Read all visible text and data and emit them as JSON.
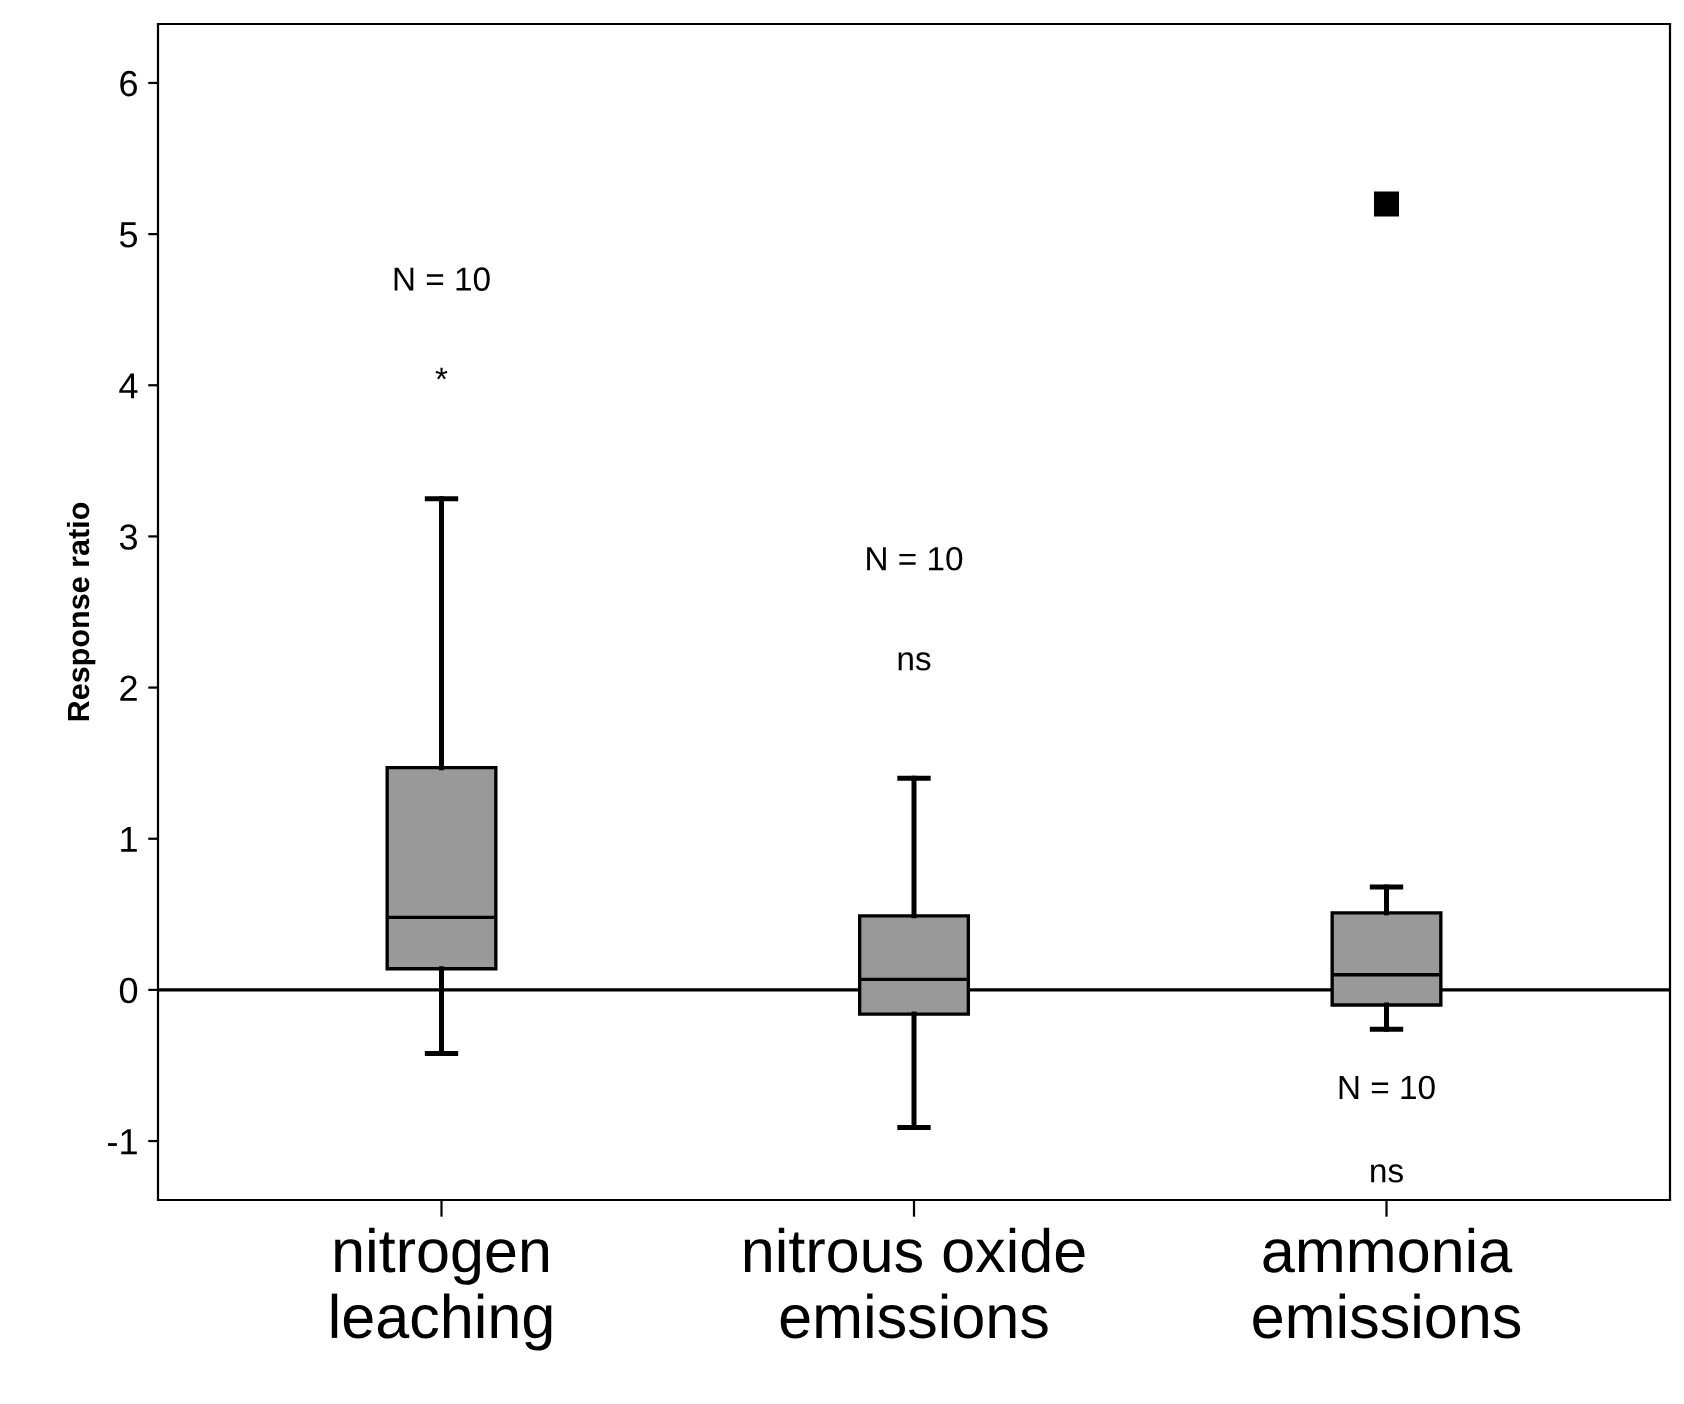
{
  "chart_data": {
    "type": "box",
    "ylabel": "Response ratio",
    "categories": [
      "nitrogen\nleaching",
      "nitrous oxide\nemissions",
      "ammonia\nemissions"
    ],
    "boxes": [
      {
        "low": -0.42,
        "q1": 0.14,
        "median": 0.48,
        "q3": 1.47,
        "high": 3.25
      },
      {
        "low": -0.91,
        "q1": -0.16,
        "median": 0.07,
        "q3": 0.49,
        "high": 1.4
      },
      {
        "low": -0.26,
        "q1": -0.1,
        "median": 0.1,
        "q3": 0.51,
        "high": 0.68,
        "outliers": [
          5.2
        ]
      }
    ],
    "color": "#999999",
    "ylim": [
      -1.39,
      6.39
    ],
    "yticks": [
      -1,
      0,
      1,
      2,
      3,
      4,
      5,
      6
    ],
    "ref_lines": [
      {
        "axis": "y",
        "value": 0,
        "color": "#000000"
      }
    ],
    "annotations": [
      "N = 10",
      "*",
      "N = 10",
      "ns",
      "N = 10",
      "ns"
    ],
    "grid": false,
    "legend": false
  }
}
